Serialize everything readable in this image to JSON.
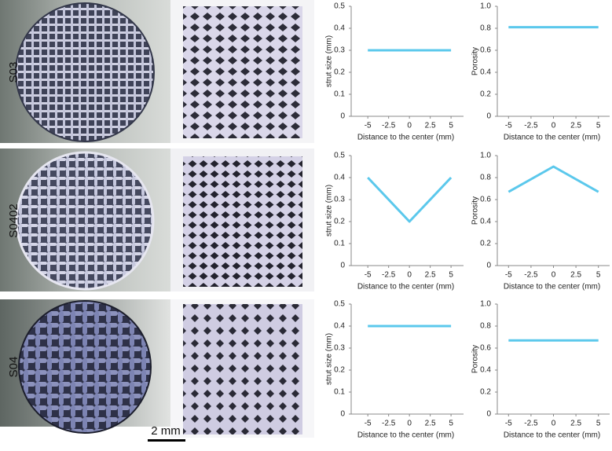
{
  "row_labels": [
    "S03",
    "S0402",
    "S04"
  ],
  "scale_bar": "2 mm",
  "chart_data": [
    {
      "type": "line",
      "x_label": "Distance to the center (mm)",
      "y_label": "strut size (mm)",
      "x": [
        -5,
        0,
        5
      ],
      "series": [
        {
          "color": "#5bc8ec",
          "values": [
            0.3,
            0.3,
            0.3
          ]
        }
      ],
      "xlim": [
        -7,
        6.5
      ],
      "xticks": [
        -5,
        -2.5,
        0,
        2.5,
        5
      ],
      "ylim": [
        0,
        0.5
      ],
      "yticks": [
        0,
        0.1,
        0.2,
        0.3,
        0.4,
        0.5
      ]
    },
    {
      "type": "line",
      "x_label": "Distance to the center (mm)",
      "y_label": "Porosity",
      "x": [
        -5,
        0,
        5
      ],
      "series": [
        {
          "color": "#5bc8ec",
          "values": [
            0.81,
            0.81,
            0.81
          ]
        }
      ],
      "xlim": [
        -6.25,
        6.25
      ],
      "xticks": [
        -5,
        -2.5,
        0,
        2.5,
        5
      ],
      "ylim": [
        0,
        1
      ],
      "yticks": [
        0,
        0.2,
        0.4,
        0.6,
        0.8,
        {
          "value": 1,
          "label": "1.0"
        }
      ]
    },
    {
      "type": "line",
      "x_label": "Distance to the center (mm)",
      "y_label": "strut size (mm)",
      "x": [
        -5,
        0,
        5
      ],
      "series": [
        {
          "color": "#5bc8ec",
          "values": [
            0.4,
            0.2,
            0.4
          ]
        }
      ],
      "xlim": [
        -7,
        6.5
      ],
      "xticks": [
        -5,
        -2.5,
        0,
        2.5,
        5
      ],
      "ylim": [
        0,
        0.5
      ],
      "yticks": [
        0,
        0.1,
        0.2,
        0.3,
        0.4,
        0.5
      ]
    },
    {
      "type": "line",
      "x_label": "Distance to the center (mm)",
      "y_label": "Porosity",
      "x": [
        -5,
        0,
        5
      ],
      "series": [
        {
          "color": "#5bc8ec",
          "values": [
            0.67,
            0.9,
            0.67
          ]
        }
      ],
      "xlim": [
        -6.25,
        6.25
      ],
      "xticks": [
        -5,
        -2.5,
        0,
        2.5,
        5
      ],
      "ylim": [
        0,
        1
      ],
      "yticks": [
        0,
        0.2,
        0.4,
        0.6,
        0.8,
        {
          "value": 1,
          "label": "1.0"
        }
      ]
    },
    {
      "type": "line",
      "x_label": "Distance to the center (mm)",
      "y_label": "strut size (mm)",
      "x": [
        -5,
        0,
        5
      ],
      "series": [
        {
          "color": "#5bc8ec",
          "values": [
            0.4,
            0.4,
            0.4
          ]
        }
      ],
      "xlim": [
        -7,
        6.5
      ],
      "xticks": [
        -5,
        -2.5,
        0,
        2.5,
        5
      ],
      "ylim": [
        0,
        0.5
      ],
      "yticks": [
        0,
        0.1,
        0.2,
        0.3,
        0.4,
        0.5
      ]
    },
    {
      "type": "line",
      "x_label": "Distance to the center (mm)",
      "y_label": "Porosity",
      "x": [
        -5,
        0,
        5
      ],
      "series": [
        {
          "color": "#5bc8ec",
          "values": [
            0.67,
            0.67,
            0.67
          ]
        }
      ],
      "xlim": [
        -6.25,
        6.25
      ],
      "xticks": [
        -5,
        -2.5,
        0,
        2.5,
        5
      ],
      "ylim": [
        0,
        1
      ],
      "yticks": [
        0,
        0.2,
        0.4,
        0.6,
        0.8,
        {
          "value": 1,
          "label": "1.0"
        }
      ]
    }
  ]
}
